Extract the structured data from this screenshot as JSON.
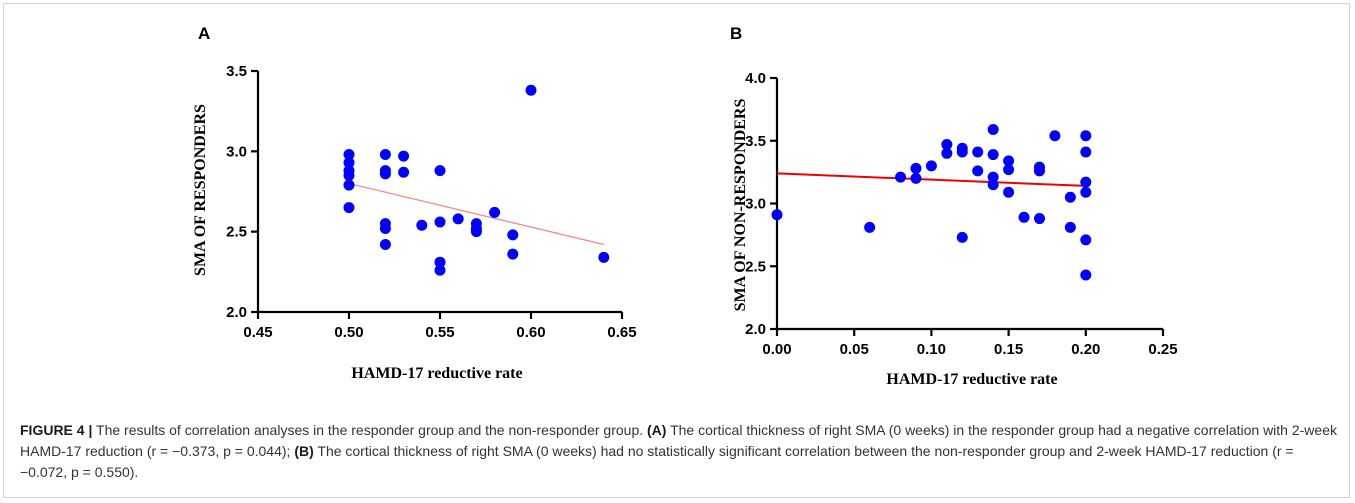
{
  "colors": {
    "points": "#0000ff",
    "panel_a_fit": "#f08a8a",
    "panel_b_fit": "#ee0000"
  },
  "chart_data": [
    {
      "type": "scatter",
      "panel_label": "A",
      "xlabel": "HAMD-17 reductive rate",
      "ylabel": "SMA OF RESPONDERS",
      "xlim": [
        0.45,
        0.65
      ],
      "ylim": [
        2.0,
        3.5
      ],
      "xticks": [
        "0.45",
        "0.50",
        "0.55",
        "0.60",
        "0.65"
      ],
      "yticks": [
        "2.0",
        "2.5",
        "3.0",
        "3.5"
      ],
      "grid": false,
      "points": [
        {
          "x": 0.5,
          "y": 2.98
        },
        {
          "x": 0.5,
          "y": 2.93
        },
        {
          "x": 0.5,
          "y": 2.88
        },
        {
          "x": 0.5,
          "y": 2.85
        },
        {
          "x": 0.5,
          "y": 2.79
        },
        {
          "x": 0.5,
          "y": 2.65
        },
        {
          "x": 0.52,
          "y": 2.98
        },
        {
          "x": 0.52,
          "y": 2.88
        },
        {
          "x": 0.52,
          "y": 2.86
        },
        {
          "x": 0.52,
          "y": 2.55
        },
        {
          "x": 0.52,
          "y": 2.52
        },
        {
          "x": 0.52,
          "y": 2.42
        },
        {
          "x": 0.53,
          "y": 2.97
        },
        {
          "x": 0.53,
          "y": 2.87
        },
        {
          "x": 0.54,
          "y": 2.54
        },
        {
          "x": 0.55,
          "y": 2.88
        },
        {
          "x": 0.55,
          "y": 2.56
        },
        {
          "x": 0.55,
          "y": 2.31
        },
        {
          "x": 0.55,
          "y": 2.26
        },
        {
          "x": 0.56,
          "y": 2.58
        },
        {
          "x": 0.57,
          "y": 2.55
        },
        {
          "x": 0.57,
          "y": 2.52
        },
        {
          "x": 0.57,
          "y": 2.5
        },
        {
          "x": 0.58,
          "y": 2.62
        },
        {
          "x": 0.59,
          "y": 2.48
        },
        {
          "x": 0.59,
          "y": 2.36
        },
        {
          "x": 0.6,
          "y": 3.38
        },
        {
          "x": 0.64,
          "y": 2.34
        }
      ],
      "fit_line": {
        "x": [
          0.5,
          0.64
        ],
        "y": [
          2.8,
          2.42
        ]
      }
    },
    {
      "type": "scatter",
      "panel_label": "B",
      "xlabel": "HAMD-17 reductive rate",
      "ylabel": "SMA OF NON-RESPONDERS",
      "xlim": [
        0.0,
        0.25
      ],
      "ylim": [
        2.0,
        4.0
      ],
      "xticks": [
        "0.00",
        "0.05",
        "0.10",
        "0.15",
        "0.20",
        "0.25"
      ],
      "yticks": [
        "2.0",
        "2.5",
        "3.0",
        "3.5",
        "4.0"
      ],
      "grid": false,
      "points": [
        {
          "x": 0.0,
          "y": 2.91
        },
        {
          "x": 0.06,
          "y": 2.81
        },
        {
          "x": 0.08,
          "y": 3.21
        },
        {
          "x": 0.09,
          "y": 3.28
        },
        {
          "x": 0.09,
          "y": 3.2
        },
        {
          "x": 0.1,
          "y": 3.3
        },
        {
          "x": 0.11,
          "y": 3.47
        },
        {
          "x": 0.11,
          "y": 3.4
        },
        {
          "x": 0.12,
          "y": 3.44
        },
        {
          "x": 0.12,
          "y": 3.41
        },
        {
          "x": 0.12,
          "y": 2.73
        },
        {
          "x": 0.13,
          "y": 3.41
        },
        {
          "x": 0.13,
          "y": 3.26
        },
        {
          "x": 0.14,
          "y": 3.59
        },
        {
          "x": 0.14,
          "y": 3.39
        },
        {
          "x": 0.14,
          "y": 3.21
        },
        {
          "x": 0.14,
          "y": 3.15
        },
        {
          "x": 0.15,
          "y": 3.34
        },
        {
          "x": 0.15,
          "y": 3.27
        },
        {
          "x": 0.15,
          "y": 3.09
        },
        {
          "x": 0.16,
          "y": 2.89
        },
        {
          "x": 0.17,
          "y": 3.29
        },
        {
          "x": 0.17,
          "y": 3.26
        },
        {
          "x": 0.17,
          "y": 2.88
        },
        {
          "x": 0.18,
          "y": 3.54
        },
        {
          "x": 0.19,
          "y": 3.05
        },
        {
          "x": 0.19,
          "y": 2.81
        },
        {
          "x": 0.2,
          "y": 3.54
        },
        {
          "x": 0.2,
          "y": 3.41
        },
        {
          "x": 0.2,
          "y": 3.17
        },
        {
          "x": 0.2,
          "y": 3.09
        },
        {
          "x": 0.2,
          "y": 2.71
        },
        {
          "x": 0.2,
          "y": 2.43
        }
      ],
      "fit_line": {
        "x": [
          0.0,
          0.2
        ],
        "y": [
          3.24,
          3.14
        ]
      }
    }
  ],
  "caption": {
    "figure_label": "FIGURE 4 |",
    "intro": " The results of correlation analyses in the responder group and the non-responder group. ",
    "label_a": "(A)",
    "text_a": " The cortical thickness of right SMA (0 weeks) in the responder group had a negative correlation with 2-week HAMD-17 reduction (r = −0.373, p = 0.044); ",
    "label_b": "(B)",
    "text_b": " The cortical thickness of right SMA (0 weeks) had no statistically significant correlation between the non-responder group and 2-week HAMD-17 reduction (r = −0.072, p = 0.550)."
  }
}
